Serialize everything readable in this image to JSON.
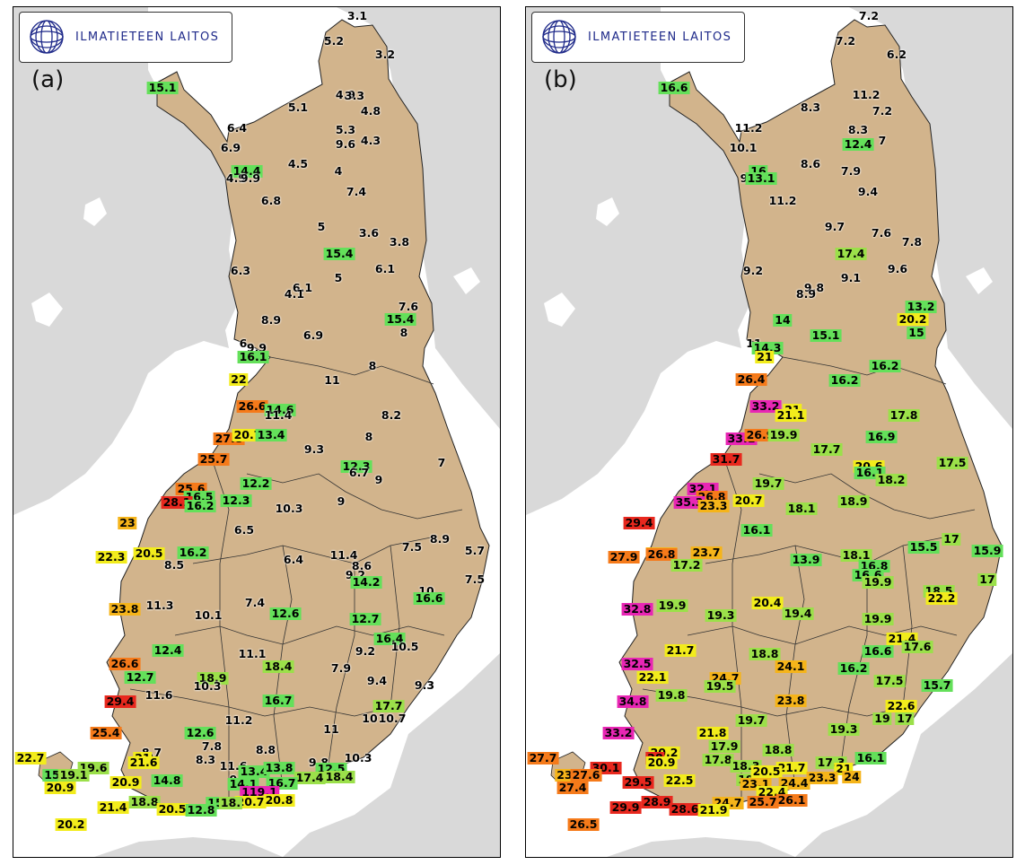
{
  "logo_text": "ILMATIETEEN LAITOS",
  "colors": {
    "land_finland": "#d2b48c",
    "land_other": "#d9d9d9",
    "water": "#ffffff"
  },
  "panels": [
    {
      "label": "(a)",
      "obs": [
        [
          "3.1",
          383,
          10
        ],
        [
          "5.2",
          357,
          38
        ],
        [
          "3.2",
          414,
          53
        ],
        [
          "15.1",
          166,
          90
        ],
        [
          "4.9",
          370,
          98
        ],
        [
          "3.3",
          380,
          99
        ],
        [
          "5.1",
          317,
          112
        ],
        [
          "4.8",
          398,
          116
        ],
        [
          "6.4",
          249,
          135
        ],
        [
          "5.3",
          370,
          137
        ],
        [
          "6.9",
          242,
          157
        ],
        [
          "9.6",
          370,
          153
        ],
        [
          "4.3",
          398,
          149
        ],
        [
          "4.5",
          317,
          175
        ],
        [
          "4",
          362,
          183
        ],
        [
          "14.4",
          260,
          183
        ],
        [
          "4.9",
          248,
          191
        ],
        [
          "9.9",
          264,
          191
        ],
        [
          "7.4",
          382,
          206
        ],
        [
          "6.8",
          287,
          216
        ],
        [
          "5",
          343,
          245
        ],
        [
          "3.6",
          396,
          252
        ],
        [
          "3.8",
          430,
          262
        ],
        [
          "15.4",
          363,
          275
        ],
        [
          "6.3",
          253,
          294
        ],
        [
          "6.1",
          414,
          292
        ],
        [
          "5",
          362,
          302
        ],
        [
          "6.1",
          322,
          313
        ],
        [
          "4.1",
          313,
          320
        ],
        [
          "7.6",
          440,
          334
        ],
        [
          "8.9",
          287,
          349
        ],
        [
          "15.4",
          431,
          348
        ],
        [
          "8",
          435,
          363
        ],
        [
          "6.9",
          334,
          366
        ],
        [
          "6",
          256,
          375
        ],
        [
          "9.9",
          271,
          380
        ],
        [
          "16.1",
          267,
          390
        ],
        [
          "8",
          400,
          400
        ],
        [
          "22",
          251,
          415
        ],
        [
          "11",
          355,
          416
        ],
        [
          "26.6",
          266,
          445
        ],
        [
          "14.6",
          297,
          449
        ],
        [
          "11.4",
          295,
          455
        ],
        [
          "8.2",
          421,
          455
        ],
        [
          "27.8",
          240,
          481
        ],
        [
          "20.7",
          261,
          477
        ],
        [
          "13.4",
          287,
          477
        ],
        [
          "8",
          396,
          479
        ],
        [
          "9.3",
          335,
          493
        ],
        [
          "25.7",
          223,
          504
        ],
        [
          "12.3",
          382,
          512
        ],
        [
          "6.7",
          385,
          519
        ],
        [
          "7",
          477,
          508
        ],
        [
          "9",
          407,
          527
        ],
        [
          "12.2",
          270,
          531
        ],
        [
          "25.6",
          198,
          537
        ],
        [
          "16.5",
          207,
          546
        ],
        [
          "28.1",
          182,
          552
        ],
        [
          "16.2",
          208,
          556
        ],
        [
          "12.3",
          248,
          550
        ],
        [
          "9",
          365,
          551
        ],
        [
          "10.3",
          307,
          559
        ],
        [
          "23",
          127,
          575
        ],
        [
          "6.5",
          257,
          583
        ],
        [
          "22.3",
          109,
          613
        ],
        [
          "20.5",
          151,
          609
        ],
        [
          "16.2",
          200,
          608
        ],
        [
          "7.5",
          444,
          602
        ],
        [
          "8.9",
          475,
          593
        ],
        [
          "5.7",
          514,
          606
        ],
        [
          "8.5",
          179,
          622
        ],
        [
          "11.4",
          368,
          611
        ],
        [
          "6.4",
          312,
          616
        ],
        [
          "8.6",
          388,
          623
        ],
        [
          "9.2",
          381,
          633
        ],
        [
          "14.2",
          393,
          641
        ],
        [
          "7.5",
          514,
          638
        ],
        [
          "10",
          460,
          651
        ],
        [
          "16.6",
          463,
          659
        ],
        [
          "23.8",
          124,
          671
        ],
        [
          "11.3",
          163,
          667
        ],
        [
          "10.1",
          217,
          678
        ],
        [
          "7.4",
          269,
          664
        ],
        [
          "12.6",
          303,
          676
        ],
        [
          "12.7",
          392,
          682
        ],
        [
          "16.4",
          419,
          704
        ],
        [
          "10.5",
          436,
          713
        ],
        [
          "12.4",
          172,
          717
        ],
        [
          "11.1",
          266,
          721
        ],
        [
          "26.6",
          124,
          732
        ],
        [
          "9.2",
          392,
          718
        ],
        [
          "18.4",
          295,
          735
        ],
        [
          "12.7",
          141,
          747
        ],
        [
          "18.9",
          222,
          748
        ],
        [
          "10.3",
          216,
          757
        ],
        [
          "7.9",
          365,
          737
        ],
        [
          "9.4",
          405,
          751
        ],
        [
          "9.3",
          458,
          756
        ],
        [
          "11.6",
          162,
          767
        ],
        [
          "29.4",
          119,
          774
        ],
        [
          "16.7",
          295,
          773
        ],
        [
          "17.7",
          418,
          779
        ],
        [
          "10",
          397,
          793
        ],
        [
          "10.7",
          422,
          793
        ],
        [
          "11.2",
          251,
          795
        ],
        [
          "25.4",
          103,
          809
        ],
        [
          "12.6",
          208,
          809
        ],
        [
          "11",
          354,
          805
        ],
        [
          "7.8",
          221,
          824
        ],
        [
          "8.8",
          281,
          828
        ],
        [
          "22.7",
          19,
          837
        ],
        [
          "8.7",
          154,
          831
        ],
        [
          "21",
          144,
          837
        ],
        [
          "21.6",
          145,
          842
        ],
        [
          "8.3",
          214,
          839
        ],
        [
          "10.3",
          384,
          837
        ],
        [
          "9.8",
          340,
          842
        ],
        [
          "19.6",
          89,
          848
        ],
        [
          "11.6",
          245,
          846
        ],
        [
          "13.4",
          268,
          852
        ],
        [
          "13.8",
          296,
          848
        ],
        [
          "12.5",
          354,
          849
        ],
        [
          "15",
          43,
          856
        ],
        [
          "19.1",
          67,
          856
        ],
        [
          "9",
          245,
          861
        ],
        [
          "17.4",
          330,
          859
        ],
        [
          "18.4",
          363,
          858
        ],
        [
          "16.7",
          299,
          865
        ],
        [
          "20.9",
          52,
          870
        ],
        [
          "20.9",
          125,
          864
        ],
        [
          "14.8",
          171,
          862
        ],
        [
          "14.1",
          256,
          866
        ],
        [
          "119.1",
          274,
          875
        ],
        [
          "21.4",
          111,
          892
        ],
        [
          "18.8",
          146,
          886
        ],
        [
          "20.5",
          177,
          894
        ],
        [
          "20.8",
          296,
          884
        ],
        [
          "20.7",
          264,
          886
        ],
        [
          "15",
          225,
          887
        ],
        [
          "18.",
          242,
          887
        ],
        [
          "12.8",
          209,
          895
        ],
        [
          "20.2",
          64,
          911
        ]
      ]
    },
    {
      "label": "(b)",
      "obs": [
        [
          "7.2",
          382,
          10
        ],
        [
          "7.2",
          356,
          38
        ],
        [
          "6.2",
          413,
          53
        ],
        [
          "16.6",
          165,
          90
        ],
        [
          "11.2",
          379,
          98
        ],
        [
          "8.3",
          317,
          112
        ],
        [
          "7.2",
          397,
          116
        ],
        [
          "11.2",
          248,
          135
        ],
        [
          "8.3",
          370,
          137
        ],
        [
          "10.1",
          242,
          157
        ],
        [
          "12.4",
          370,
          153
        ],
        [
          "7",
          397,
          149
        ],
        [
          "8.6",
          317,
          175
        ],
        [
          "7.9",
          362,
          183
        ],
        [
          "16",
          259,
          183
        ],
        [
          "9",
          243,
          191
        ],
        [
          "13.1",
          262,
          191
        ],
        [
          "9.4",
          381,
          206
        ],
        [
          "11.2",
          286,
          216
        ],
        [
          "9.7",
          344,
          245
        ],
        [
          "7.6",
          396,
          252
        ],
        [
          "7.8",
          430,
          262
        ],
        [
          "17.4",
          362,
          275
        ],
        [
          "9.2",
          253,
          294
        ],
        [
          "9.6",
          414,
          292
        ],
        [
          "9.1",
          362,
          302
        ],
        [
          "9.8",
          321,
          313
        ],
        [
          "8.9",
          312,
          320
        ],
        [
          "13.2",
          440,
          334
        ],
        [
          "20.2",
          431,
          348
        ],
        [
          "15",
          435,
          363
        ],
        [
          "14",
          286,
          349
        ],
        [
          "15.1",
          334,
          366
        ],
        [
          "11",
          254,
          375
        ],
        [
          "14.3",
          269,
          380
        ],
        [
          "21",
          266,
          390
        ],
        [
          "16.2",
          400,
          400
        ],
        [
          "26.4",
          251,
          415
        ],
        [
          "16.2",
          355,
          416
        ],
        [
          "33.2",
          267,
          445
        ],
        [
          "21",
          297,
          449
        ],
        [
          "21.1",
          295,
          455
        ],
        [
          "17.8",
          421,
          455
        ],
        [
          "33.1",
          240,
          481
        ],
        [
          "26.9",
          261,
          477
        ],
        [
          "19.9",
          287,
          477
        ],
        [
          "16.9",
          396,
          479
        ],
        [
          "17.7",
          335,
          493
        ],
        [
          "31.7",
          223,
          504
        ],
        [
          "17.5",
          475,
          508
        ],
        [
          "20.6",
          382,
          512
        ],
        [
          "16.1",
          383,
          519
        ],
        [
          "18.2",
          407,
          527
        ],
        [
          "19.7",
          270,
          531
        ],
        [
          "32.1",
          197,
          537
        ],
        [
          "26.8",
          207,
          546
        ],
        [
          "35.3",
          182,
          552
        ],
        [
          "23.3",
          209,
          556
        ],
        [
          "20.7",
          248,
          550
        ],
        [
          "18.9",
          365,
          551
        ],
        [
          "18.1",
          307,
          559
        ],
        [
          "29.4",
          126,
          575
        ],
        [
          "16.1",
          257,
          583
        ],
        [
          "27.9",
          109,
          613
        ],
        [
          "24.1",
          151,
          609
        ],
        [
          "26.8",
          151,
          610
        ],
        [
          "23.7",
          201,
          608
        ],
        [
          "15.5",
          443,
          602
        ],
        [
          "17",
          474,
          593
        ],
        [
          "15.9",
          514,
          606
        ],
        [
          "17.2",
          179,
          622
        ],
        [
          "18.1",
          368,
          611
        ],
        [
          "13.9",
          312,
          616
        ],
        [
          "16.8",
          388,
          623
        ],
        [
          "16.6",
          381,
          633
        ],
        [
          "19.9",
          392,
          641
        ],
        [
          "17",
          514,
          638
        ],
        [
          "18.5",
          460,
          651
        ],
        [
          "22.2",
          463,
          659
        ],
        [
          "32.8",
          124,
          671
        ],
        [
          "19.9",
          163,
          667
        ],
        [
          "19.3",
          217,
          678
        ],
        [
          "20.4",
          269,
          664
        ],
        [
          "19.4",
          303,
          676
        ],
        [
          "19.9",
          392,
          682
        ],
        [
          "21.4",
          419,
          704
        ],
        [
          "17.6",
          436,
          713
        ],
        [
          "21.7",
          172,
          717
        ],
        [
          "18.8",
          266,
          721
        ],
        [
          "32.5",
          124,
          732
        ],
        [
          "16.6",
          392,
          718
        ],
        [
          "24.1",
          295,
          735
        ],
        [
          "22.1",
          141,
          747
        ],
        [
          "24.7",
          222,
          748
        ],
        [
          "19.5",
          216,
          757
        ],
        [
          "16.2",
          365,
          737
        ],
        [
          "17.5",
          405,
          751
        ],
        [
          "15.7",
          458,
          756
        ],
        [
          "19.8",
          162,
          767
        ],
        [
          "34.8",
          119,
          774
        ],
        [
          "23.8",
          295,
          773
        ],
        [
          "22.6",
          418,
          779
        ],
        [
          "19",
          397,
          793
        ],
        [
          "17",
          422,
          793
        ],
        [
          "19.7",
          251,
          795
        ],
        [
          "33.2",
          103,
          809
        ],
        [
          "21.8",
          208,
          809
        ],
        [
          "19.3",
          354,
          805
        ],
        [
          "17.9",
          221,
          824
        ],
        [
          "18.8",
          281,
          828
        ],
        [
          "27.7",
          19,
          837
        ],
        [
          "20.2",
          154,
          831
        ],
        [
          "28",
          144,
          837
        ],
        [
          "20.9",
          151,
          842
        ],
        [
          "17.8",
          214,
          839
        ],
        [
          "16.1",
          384,
          837
        ],
        [
          "17.3",
          340,
          842
        ],
        [
          "30.1",
          89,
          848
        ],
        [
          "18.3",
          245,
          846
        ],
        [
          "21.7",
          296,
          848
        ],
        [
          "21",
          354,
          849
        ],
        [
          "23",
          43,
          856
        ],
        [
          "27.6",
          67,
          856
        ],
        [
          "19",
          245,
          861
        ],
        [
          "20.5",
          268,
          852
        ],
        [
          "23.3",
          330,
          859
        ],
        [
          "24",
          363,
          858
        ],
        [
          "24.4",
          299,
          865
        ],
        [
          "27.4",
          52,
          870
        ],
        [
          "22.5",
          171,
          862
        ],
        [
          "23.1",
          256,
          866
        ],
        [
          "22.4",
          274,
          875
        ],
        [
          "29.5",
          125,
          864
        ],
        [
          "26.1",
          296,
          884
        ],
        [
          "25.7",
          264,
          886
        ],
        [
          "28.9",
          146,
          886
        ],
        [
          "24.7",
          225,
          887
        ],
        [
          "29.9",
          111,
          892
        ],
        [
          "28.6",
          177,
          894
        ],
        [
          "21.9",
          209,
          895
        ],
        [
          "26.5",
          64,
          911
        ]
      ]
    }
  ]
}
